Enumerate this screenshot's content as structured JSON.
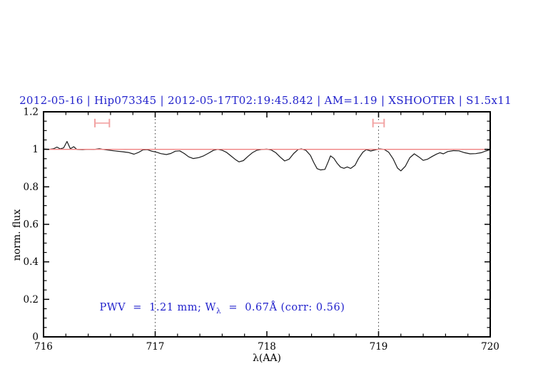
{
  "colors": {
    "blue_text": "#2222cc",
    "spectrum": "#1a1a1a",
    "reference_line": "#f08080",
    "marker": "#f2a3a3",
    "axis": "#000000",
    "dotted_guide": "#4a4a4a"
  },
  "chart_data": {
    "type": "line",
    "title": "2012-05-16 | Hip073345 | 2012-05-17T02:19:45.842 | AM=1.19 | XSHOOTER | S1.5x11",
    "xlabel": "λ(AA)",
    "ylabel": "norm. flux",
    "xlim": [
      716,
      720
    ],
    "ylim": [
      0,
      1.2
    ],
    "x_minor_step": 0.2,
    "y_minor_step": 0.05,
    "grid": false,
    "legend": "none",
    "xticks": [
      {
        "v": 716,
        "label": "716"
      },
      {
        "v": 717,
        "label": "717"
      },
      {
        "v": 718,
        "label": "718"
      },
      {
        "v": 719,
        "label": "719"
      },
      {
        "v": 720,
        "label": "720"
      }
    ],
    "yticks": [
      {
        "v": 0,
        "label": "0"
      },
      {
        "v": 0.2,
        "label": "0.2"
      },
      {
        "v": 0.4,
        "label": "0.4"
      },
      {
        "v": 0.6,
        "label": "0.6"
      },
      {
        "v": 0.8,
        "label": "0.8"
      },
      {
        "v": 1,
        "label": "1"
      },
      {
        "v": 1.2,
        "label": "1.2"
      }
    ],
    "guide_lines_x": [
      717,
      719
    ],
    "reference_line": {
      "y": 1.0
    },
    "range_markers": [
      {
        "x_min": 716.46,
        "x_max": 716.59,
        "y": 1.14
      },
      {
        "x_min": 718.95,
        "x_max": 719.05,
        "y": 1.14
      }
    ],
    "annotation": {
      "pre": "PWV  =  1.21 mm; W",
      "sub": "λ",
      "post": "  =  0.67Å (corr: 0.56)",
      "full": "PWV = 1.21 mm; Wλ = 0.67Å (corr: 0.56)"
    },
    "series": [
      {
        "name": "spectrum",
        "points": [
          [
            716.0,
            1.002
          ],
          [
            716.05,
            1.0
          ],
          [
            716.09,
            1.003
          ],
          [
            716.12,
            1.012
          ],
          [
            716.15,
            1.002
          ],
          [
            716.18,
            1.008
          ],
          [
            716.21,
            1.042
          ],
          [
            716.24,
            1.003
          ],
          [
            716.27,
            1.014
          ],
          [
            716.3,
            0.999
          ],
          [
            716.35,
            0.998
          ],
          [
            716.4,
            1.0
          ],
          [
            716.45,
            0.999
          ],
          [
            716.5,
            1.003
          ],
          [
            716.55,
            0.998
          ],
          [
            716.6,
            0.994
          ],
          [
            716.66,
            0.99
          ],
          [
            716.71,
            0.987
          ],
          [
            716.76,
            0.983
          ],
          [
            716.81,
            0.974
          ],
          [
            716.85,
            0.983
          ],
          [
            716.89,
            0.997
          ],
          [
            716.93,
            0.998
          ],
          [
            716.97,
            0.99
          ],
          [
            717.01,
            0.985
          ],
          [
            717.05,
            0.977
          ],
          [
            717.1,
            0.972
          ],
          [
            717.14,
            0.978
          ],
          [
            717.18,
            0.99
          ],
          [
            717.22,
            0.992
          ],
          [
            717.26,
            0.978
          ],
          [
            717.3,
            0.96
          ],
          [
            717.34,
            0.951
          ],
          [
            717.39,
            0.956
          ],
          [
            717.43,
            0.964
          ],
          [
            717.48,
            0.98
          ],
          [
            717.52,
            0.994
          ],
          [
            717.56,
            1.0
          ],
          [
            717.6,
            0.995
          ],
          [
            717.64,
            0.983
          ],
          [
            717.68,
            0.964
          ],
          [
            717.72,
            0.945
          ],
          [
            717.75,
            0.933
          ],
          [
            717.79,
            0.94
          ],
          [
            717.83,
            0.962
          ],
          [
            717.87,
            0.982
          ],
          [
            717.91,
            0.995
          ],
          [
            717.95,
            0.999
          ],
          [
            718.0,
            1.001
          ],
          [
            718.04,
            0.996
          ],
          [
            718.08,
            0.982
          ],
          [
            718.12,
            0.958
          ],
          [
            718.16,
            0.938
          ],
          [
            718.2,
            0.948
          ],
          [
            718.24,
            0.978
          ],
          [
            718.28,
            0.999
          ],
          [
            718.31,
            1.002
          ],
          [
            718.35,
            0.994
          ],
          [
            718.39,
            0.968
          ],
          [
            718.42,
            0.93
          ],
          [
            718.45,
            0.897
          ],
          [
            718.48,
            0.89
          ],
          [
            718.52,
            0.893
          ],
          [
            718.55,
            0.935
          ],
          [
            718.57,
            0.965
          ],
          [
            718.6,
            0.952
          ],
          [
            718.63,
            0.925
          ],
          [
            718.66,
            0.905
          ],
          [
            718.69,
            0.899
          ],
          [
            718.72,
            0.906
          ],
          [
            718.75,
            0.898
          ],
          [
            718.79,
            0.915
          ],
          [
            718.82,
            0.95
          ],
          [
            718.86,
            0.985
          ],
          [
            718.89,
            0.998
          ],
          [
            718.93,
            0.991
          ],
          [
            718.97,
            0.997
          ],
          [
            719.01,
            1.002
          ],
          [
            719.05,
            1.0
          ],
          [
            719.09,
            0.985
          ],
          [
            719.13,
            0.95
          ],
          [
            719.17,
            0.9
          ],
          [
            719.2,
            0.885
          ],
          [
            719.24,
            0.91
          ],
          [
            719.28,
            0.955
          ],
          [
            719.32,
            0.976
          ],
          [
            719.36,
            0.96
          ],
          [
            719.4,
            0.941
          ],
          [
            719.44,
            0.948
          ],
          [
            719.48,
            0.962
          ],
          [
            719.52,
            0.975
          ],
          [
            719.55,
            0.982
          ],
          [
            719.58,
            0.976
          ],
          [
            719.62,
            0.988
          ],
          [
            719.67,
            0.993
          ],
          [
            719.72,
            0.992
          ],
          [
            719.77,
            0.982
          ],
          [
            719.82,
            0.976
          ],
          [
            719.87,
            0.977
          ],
          [
            719.92,
            0.982
          ],
          [
            719.96,
            0.991
          ],
          [
            720.0,
            0.998
          ]
        ]
      }
    ]
  }
}
